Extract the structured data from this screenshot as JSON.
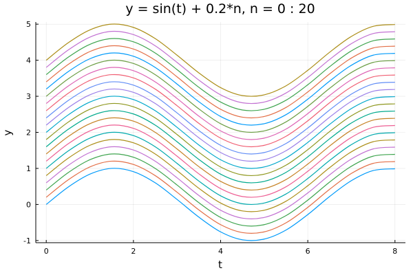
{
  "chart_data": {
    "type": "line",
    "title": "y = sin(t) + 0.2*n,  n = 0 : 20",
    "xlabel": "t",
    "ylabel": "y",
    "xlim": [
      -0.24,
      8.24
    ],
    "ylim": [
      -1.06,
      5.06
    ],
    "xticks": [
      0,
      2,
      4,
      6,
      8
    ],
    "xtick_labels": [
      "0",
      "2",
      "4",
      "6",
      "8"
    ],
    "yticks": [
      -1,
      0,
      1,
      2,
      3,
      4,
      5
    ],
    "ytick_labels": [
      "-1",
      "0",
      "1",
      "2",
      "3",
      "4",
      "5"
    ],
    "grid": true,
    "legend": "none",
    "x": [
      0.0,
      0.5,
      1.0,
      1.5,
      2.0,
      2.5,
      3.0,
      3.5,
      4.0,
      4.5,
      5.0,
      5.5,
      6.0,
      6.5,
      7.0,
      7.5,
      8.0
    ],
    "series": [
      {
        "color": "#009AFA",
        "values": [
          0.0,
          0.48,
          0.84,
          1.0,
          0.91,
          0.6,
          0.14,
          -0.35,
          -0.76,
          -0.98,
          -0.96,
          -0.71,
          -0.28,
          0.22,
          0.66,
          0.94,
          0.99
        ]
      },
      {
        "color": "#E36F47",
        "values": [
          0.2,
          0.68,
          1.04,
          1.2,
          1.11,
          0.8,
          0.34,
          -0.15,
          -0.56,
          -0.78,
          -0.76,
          -0.51,
          -0.08,
          0.42,
          0.86,
          1.14,
          1.19
        ]
      },
      {
        "color": "#3EA44E",
        "values": [
          0.4,
          0.88,
          1.24,
          1.4,
          1.31,
          1.0,
          0.54,
          0.05,
          -0.36,
          -0.58,
          -0.56,
          -0.31,
          0.12,
          0.62,
          1.06,
          1.34,
          1.39
        ]
      },
      {
        "color": "#C271D2",
        "values": [
          0.6,
          1.08,
          1.44,
          1.6,
          1.51,
          1.2,
          0.74,
          0.25,
          -0.16,
          -0.38,
          -0.36,
          -0.11,
          0.32,
          0.82,
          1.26,
          1.54,
          1.59
        ]
      },
      {
        "color": "#AC8E18",
        "values": [
          0.8,
          1.28,
          1.64,
          1.8,
          1.71,
          1.4,
          0.94,
          0.45,
          0.04,
          -0.18,
          -0.16,
          0.09,
          0.52,
          1.02,
          1.46,
          1.74,
          1.79
        ]
      },
      {
        "color": "#00A9AD",
        "values": [
          1.0,
          1.48,
          1.84,
          2.0,
          1.91,
          1.6,
          1.14,
          0.65,
          0.24,
          0.02,
          0.04,
          0.29,
          0.72,
          1.22,
          1.66,
          1.94,
          1.99
        ]
      },
      {
        "color": "#ED5E93",
        "values": [
          1.2,
          1.68,
          2.04,
          2.2,
          2.11,
          1.8,
          1.34,
          0.85,
          0.44,
          0.22,
          0.24,
          0.49,
          0.92,
          1.42,
          1.86,
          2.14,
          2.19
        ]
      },
      {
        "color": "#C68225",
        "values": [
          1.4,
          1.88,
          2.24,
          2.4,
          2.31,
          2.0,
          1.54,
          1.05,
          0.64,
          0.42,
          0.44,
          0.69,
          1.12,
          1.62,
          2.06,
          2.34,
          2.39
        ]
      },
      {
        "color": "#00A98D",
        "values": [
          1.6,
          2.08,
          2.44,
          2.6,
          2.51,
          2.2,
          1.74,
          1.25,
          0.84,
          0.62,
          0.64,
          0.89,
          1.32,
          1.82,
          2.26,
          2.54,
          2.59
        ]
      },
      {
        "color": "#8E971E",
        "values": [
          1.8,
          2.28,
          2.64,
          2.8,
          2.71,
          2.4,
          1.94,
          1.45,
          1.04,
          0.82,
          0.84,
          1.09,
          1.52,
          2.02,
          2.46,
          2.74,
          2.79
        ]
      },
      {
        "color": "#00A8CB",
        "values": [
          2.0,
          2.48,
          2.84,
          3.0,
          2.91,
          2.6,
          2.14,
          1.65,
          1.24,
          1.02,
          1.04,
          1.29,
          1.72,
          2.22,
          2.66,
          2.94,
          2.99
        ]
      },
      {
        "color": "#9B7FE8",
        "values": [
          2.2,
          2.68,
          3.04,
          3.2,
          3.11,
          2.8,
          2.34,
          1.85,
          1.44,
          1.22,
          1.24,
          1.49,
          1.92,
          2.42,
          2.86,
          3.14,
          3.19
        ]
      },
      {
        "color": "#618DF6",
        "values": [
          2.4,
          2.88,
          3.24,
          3.4,
          3.31,
          3.0,
          2.54,
          2.05,
          1.64,
          1.42,
          1.44,
          1.69,
          2.12,
          2.62,
          3.06,
          3.34,
          3.39
        ]
      },
      {
        "color": "#F05F73",
        "values": [
          2.6,
          3.08,
          3.44,
          3.6,
          3.51,
          3.2,
          2.74,
          2.25,
          1.84,
          1.62,
          1.64,
          1.89,
          2.32,
          2.82,
          3.26,
          3.54,
          3.59
        ]
      },
      {
        "color": "#DD64B5",
        "values": [
          2.8,
          3.28,
          3.64,
          3.8,
          3.71,
          3.4,
          2.94,
          2.45,
          2.04,
          1.82,
          1.84,
          2.09,
          2.52,
          3.02,
          3.46,
          3.74,
          3.79
        ]
      },
      {
        "color": "#6B9D43",
        "values": [
          3.0,
          3.48,
          3.84,
          4.0,
          3.91,
          3.6,
          3.14,
          2.65,
          2.24,
          2.02,
          2.04,
          2.29,
          2.72,
          3.22,
          3.66,
          3.94,
          3.99
        ]
      },
      {
        "color": "#009AFA",
        "values": [
          3.2,
          3.68,
          4.04,
          4.2,
          4.11,
          3.8,
          3.34,
          2.85,
          2.44,
          2.22,
          2.24,
          2.49,
          2.92,
          3.42,
          3.86,
          4.14,
          4.19
        ]
      },
      {
        "color": "#E36F47",
        "values": [
          3.4,
          3.88,
          4.24,
          4.4,
          4.31,
          4.0,
          3.54,
          3.05,
          2.64,
          2.42,
          2.44,
          2.69,
          3.12,
          3.62,
          4.06,
          4.34,
          4.39
        ]
      },
      {
        "color": "#3EA44E",
        "values": [
          3.6,
          4.08,
          4.44,
          4.6,
          4.51,
          4.2,
          3.74,
          3.25,
          2.84,
          2.62,
          2.64,
          2.89,
          3.32,
          3.82,
          4.26,
          4.54,
          4.59
        ]
      },
      {
        "color": "#C271D2",
        "values": [
          3.8,
          4.28,
          4.64,
          4.8,
          4.71,
          4.4,
          3.94,
          3.45,
          3.04,
          2.82,
          2.84,
          3.09,
          3.52,
          4.02,
          4.46,
          4.74,
          4.79
        ]
      },
      {
        "color": "#AC8E18",
        "values": [
          4.0,
          4.48,
          4.84,
          5.0,
          4.91,
          4.6,
          4.14,
          3.65,
          3.24,
          3.02,
          3.04,
          3.29,
          3.72,
          4.22,
          4.66,
          4.94,
          4.99
        ]
      }
    ]
  }
}
